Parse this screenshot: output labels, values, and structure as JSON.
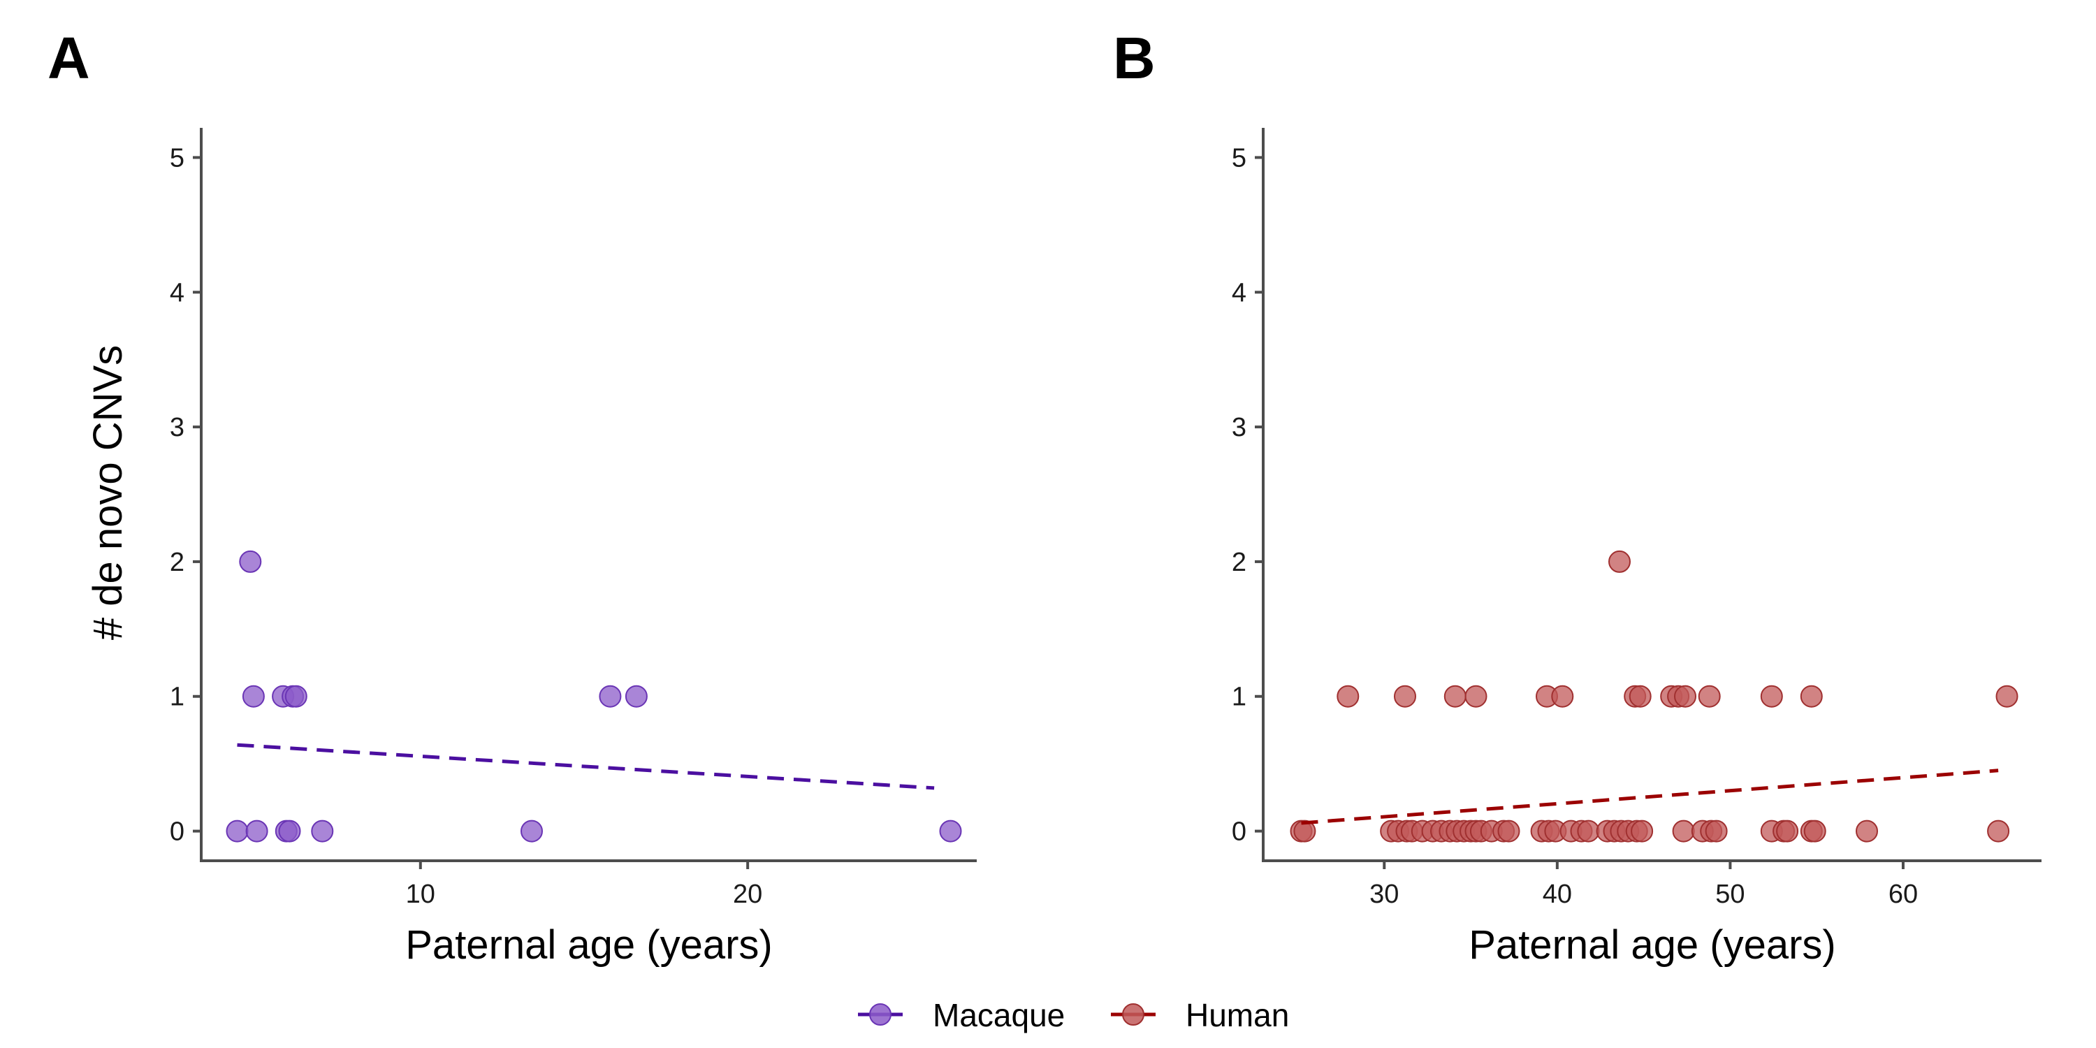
{
  "colors": {
    "macaque_fill": "#8c5cc9",
    "macaque_stroke": "#6a35b5",
    "macaque_line": "#4b0fa0",
    "human_fill": "#c15a5a",
    "human_stroke": "#a03030",
    "human_line": "#9b0000",
    "axis": "#4d4d4d"
  },
  "legend": {
    "items": [
      {
        "label": "Macaque",
        "series": "macaque"
      },
      {
        "label": "Human",
        "series": "human"
      }
    ]
  },
  "chart_data": [
    {
      "panel": "A",
      "type": "scatter",
      "series_key": "macaque",
      "xlabel": "Paternal age (years)",
      "ylabel": "# de novo CNVs",
      "xlim": [
        3.3,
        27.0
      ],
      "ylim": [
        -0.22,
        5.22
      ],
      "xticks": [
        10,
        20
      ],
      "yticks": [
        0,
        1,
        2,
        3,
        4,
        5
      ],
      "points": [
        {
          "x": 4.4,
          "y": 0
        },
        {
          "x": 5.0,
          "y": 0
        },
        {
          "x": 5.9,
          "y": 0
        },
        {
          "x": 6.0,
          "y": 0
        },
        {
          "x": 7.0,
          "y": 0
        },
        {
          "x": 13.4,
          "y": 0
        },
        {
          "x": 26.2,
          "y": 0
        },
        {
          "x": 4.9,
          "y": 1
        },
        {
          "x": 5.8,
          "y": 1
        },
        {
          "x": 6.1,
          "y": 1
        },
        {
          "x": 6.2,
          "y": 1
        },
        {
          "x": 15.8,
          "y": 1
        },
        {
          "x": 16.6,
          "y": 1
        },
        {
          "x": 4.8,
          "y": 2
        }
      ],
      "trend": {
        "x": [
          4.4,
          25.7
        ],
        "y": [
          0.64,
          0.32
        ]
      }
    },
    {
      "panel": "B",
      "type": "scatter",
      "series_key": "human",
      "xlabel": "Paternal age (years)",
      "ylabel": "",
      "xlim": [
        23.0,
        68.0
      ],
      "ylim": [
        -0.22,
        5.22
      ],
      "xticks": [
        30,
        40,
        50,
        60
      ],
      "yticks": [
        0,
        1,
        2,
        3,
        4,
        5
      ],
      "points": [
        {
          "x": 25.2,
          "y": 0
        },
        {
          "x": 25.4,
          "y": 0
        },
        {
          "x": 30.4,
          "y": 0
        },
        {
          "x": 30.8,
          "y": 0
        },
        {
          "x": 31.3,
          "y": 0
        },
        {
          "x": 31.6,
          "y": 0
        },
        {
          "x": 32.2,
          "y": 0
        },
        {
          "x": 32.8,
          "y": 0
        },
        {
          "x": 33.3,
          "y": 0
        },
        {
          "x": 33.8,
          "y": 0
        },
        {
          "x": 34.2,
          "y": 0
        },
        {
          "x": 34.6,
          "y": 0
        },
        {
          "x": 35.0,
          "y": 0
        },
        {
          "x": 35.3,
          "y": 0
        },
        {
          "x": 35.6,
          "y": 0
        },
        {
          "x": 36.2,
          "y": 0
        },
        {
          "x": 36.9,
          "y": 0
        },
        {
          "x": 37.2,
          "y": 0
        },
        {
          "x": 39.1,
          "y": 0
        },
        {
          "x": 39.5,
          "y": 0
        },
        {
          "x": 39.9,
          "y": 0
        },
        {
          "x": 40.8,
          "y": 0
        },
        {
          "x": 41.4,
          "y": 0
        },
        {
          "x": 41.8,
          "y": 0
        },
        {
          "x": 42.9,
          "y": 0
        },
        {
          "x": 43.3,
          "y": 0
        },
        {
          "x": 43.7,
          "y": 0
        },
        {
          "x": 44.1,
          "y": 0
        },
        {
          "x": 44.6,
          "y": 0
        },
        {
          "x": 44.9,
          "y": 0
        },
        {
          "x": 47.3,
          "y": 0
        },
        {
          "x": 48.4,
          "y": 0
        },
        {
          "x": 48.9,
          "y": 0
        },
        {
          "x": 49.2,
          "y": 0
        },
        {
          "x": 52.4,
          "y": 0
        },
        {
          "x": 53.1,
          "y": 0
        },
        {
          "x": 53.3,
          "y": 0
        },
        {
          "x": 54.7,
          "y": 0
        },
        {
          "x": 54.9,
          "y": 0
        },
        {
          "x": 57.9,
          "y": 0
        },
        {
          "x": 65.5,
          "y": 0
        },
        {
          "x": 27.9,
          "y": 1
        },
        {
          "x": 31.2,
          "y": 1
        },
        {
          "x": 34.1,
          "y": 1
        },
        {
          "x": 35.3,
          "y": 1
        },
        {
          "x": 39.4,
          "y": 1
        },
        {
          "x": 40.3,
          "y": 1
        },
        {
          "x": 44.5,
          "y": 1
        },
        {
          "x": 44.8,
          "y": 1
        },
        {
          "x": 46.6,
          "y": 1
        },
        {
          "x": 47.0,
          "y": 1
        },
        {
          "x": 47.4,
          "y": 1
        },
        {
          "x": 48.8,
          "y": 1
        },
        {
          "x": 52.4,
          "y": 1
        },
        {
          "x": 54.7,
          "y": 1
        },
        {
          "x": 66.0,
          "y": 1
        },
        {
          "x": 43.6,
          "y": 2
        }
      ],
      "trend": {
        "x": [
          25.2,
          65.5
        ],
        "y": [
          0.06,
          0.45
        ]
      }
    }
  ]
}
